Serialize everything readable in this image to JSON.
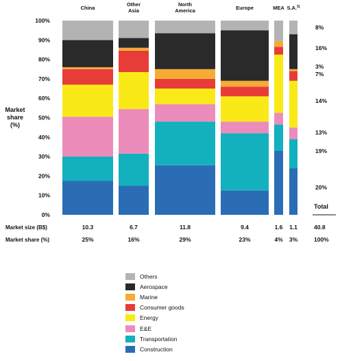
{
  "chart_data": {
    "type": "bar",
    "variant": "marimekko-stacked-100",
    "ylabel": [
      "Market",
      "share",
      "(%)"
    ],
    "y_ticks": [
      "0%",
      "10%",
      "20%",
      "30%",
      "40%",
      "50%",
      "60%",
      "70%",
      "80%",
      "90%",
      "100%"
    ],
    "ylim": [
      0,
      100
    ],
    "categories": [
      "China",
      "Other\nAsia",
      "North\nAmerica",
      "Europe",
      "MEA",
      "S.A."
    ],
    "category_superscript": [
      "",
      "",
      "",
      "",
      "",
      "5)"
    ],
    "market_size_label": "Market size (B$)",
    "market_share_label": "Market share (%)",
    "market_size": [
      "10.3",
      "6.7",
      "11.8",
      "9.4",
      "1.6",
      "1.1"
    ],
    "market_share": [
      "25%",
      "16%",
      "29%",
      "23%",
      "4%",
      "3%"
    ],
    "column_width_share": [
      25,
      16,
      29,
      23,
      4,
      3
    ],
    "total": {
      "label": "Total",
      "market_size": "40.8",
      "market_share": "100%"
    },
    "series": [
      {
        "name": "Construction",
        "color": "#2a6db5",
        "values": [
          17.5,
          15,
          25.5,
          12.5,
          33,
          24
        ],
        "total_share": "20%"
      },
      {
        "name": "Transportation",
        "color": "#13b0be",
        "values": [
          12.5,
          16.5,
          22.5,
          29.5,
          13.5,
          15
        ],
        "total_share": "19%"
      },
      {
        "name": "E&E",
        "color": "#ec8cba",
        "values": [
          20.5,
          23,
          9,
          6,
          6,
          6
        ],
        "total_share": "13%"
      },
      {
        "name": "Energy",
        "color": "#f9ea17",
        "values": [
          16.5,
          19,
          8,
          13,
          30,
          24
        ],
        "total_share": "14%"
      },
      {
        "name": "Consumer goods",
        "color": "#e73c37",
        "values": [
          8,
          11,
          5,
          5,
          4,
          5
        ],
        "total_share": "7%"
      },
      {
        "name": "Marine",
        "color": "#f6ab35",
        "values": [
          1,
          1.5,
          5,
          3,
          3,
          1
        ],
        "total_share": "3%"
      },
      {
        "name": "Aerospace",
        "color": "#2a2a2a",
        "values": [
          14,
          5,
          18.5,
          26,
          0,
          18
        ],
        "total_share": "16%"
      },
      {
        "name": "Others",
        "color": "#b3b3b3",
        "values": [
          10,
          9,
          6.5,
          5,
          10.5,
          7
        ],
        "total_share": "8%"
      }
    ]
  },
  "legend": {
    "order": [
      "Others",
      "Aerospace",
      "Marine",
      "Consumer goods",
      "Energy",
      "E&E",
      "Transportation",
      "Construction"
    ],
    "items": [
      {
        "name": "Others",
        "color": "#b3b3b3"
      },
      {
        "name": "Aerospace",
        "color": "#2a2a2a"
      },
      {
        "name": "Marine",
        "color": "#f6ab35"
      },
      {
        "name": "Consumer goods",
        "color": "#e73c37"
      },
      {
        "name": "Energy",
        "color": "#f9ea17"
      },
      {
        "name": "E&E",
        "color": "#ec8cba"
      },
      {
        "name": "Transportation",
        "color": "#13b0be"
      },
      {
        "name": "Construction",
        "color": "#2a6db5"
      }
    ]
  }
}
